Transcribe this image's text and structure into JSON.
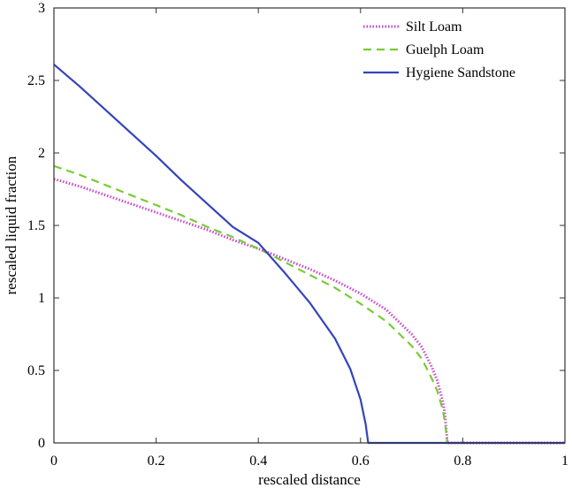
{
  "chart_data": {
    "type": "line",
    "title": "",
    "xlabel": "rescaled distance",
    "ylabel": "rescaled liquid fraction",
    "xlim": [
      0,
      1
    ],
    "ylim": [
      0,
      3
    ],
    "x_ticks": [
      "0",
      "0.2",
      "0.4",
      "0.6",
      "0.8",
      "1"
    ],
    "y_ticks": [
      "0",
      "0.5",
      "1",
      "1.5",
      "2",
      "2.5",
      "3"
    ],
    "grid": false,
    "legend_position": "top-right",
    "series": [
      {
        "name": "Silt Loam",
        "color": "#cc44cc",
        "style": "dotted",
        "x": [
          0,
          0.05,
          0.1,
          0.15,
          0.2,
          0.25,
          0.3,
          0.35,
          0.4,
          0.45,
          0.5,
          0.55,
          0.6,
          0.65,
          0.7,
          0.72,
          0.74,
          0.75,
          0.76,
          0.765,
          0.77,
          0.8,
          1.0
        ],
        "y": [
          1.82,
          1.77,
          1.71,
          1.65,
          1.59,
          1.53,
          1.47,
          1.4,
          1.34,
          1.27,
          1.2,
          1.12,
          1.03,
          0.92,
          0.75,
          0.66,
          0.52,
          0.43,
          0.3,
          0.2,
          0.0,
          0.0,
          0.0
        ]
      },
      {
        "name": "Guelph Loam",
        "color": "#77cc33",
        "style": "dashed",
        "x": [
          0,
          0.05,
          0.1,
          0.15,
          0.2,
          0.25,
          0.3,
          0.35,
          0.4,
          0.45,
          0.5,
          0.55,
          0.6,
          0.65,
          0.7,
          0.72,
          0.74,
          0.75,
          0.76,
          0.765,
          0.77
        ],
        "y": [
          1.91,
          1.85,
          1.78,
          1.71,
          1.64,
          1.57,
          1.49,
          1.42,
          1.34,
          1.25,
          1.16,
          1.07,
          0.96,
          0.84,
          0.67,
          0.58,
          0.44,
          0.36,
          0.24,
          0.15,
          0.0
        ]
      },
      {
        "name": "Hygiene Sandstone",
        "color": "#3344bb",
        "style": "solid",
        "x": [
          0,
          0.05,
          0.1,
          0.15,
          0.2,
          0.25,
          0.3,
          0.35,
          0.4,
          0.45,
          0.5,
          0.55,
          0.58,
          0.6,
          0.61,
          0.615,
          0.62,
          0.7,
          0.8,
          0.9,
          1.0
        ],
        "y": [
          2.61,
          2.46,
          2.3,
          2.14,
          1.98,
          1.81,
          1.65,
          1.49,
          1.38,
          1.18,
          0.97,
          0.72,
          0.51,
          0.3,
          0.13,
          0.0,
          0.0,
          0.0,
          0.0,
          0.0,
          0.0
        ]
      }
    ]
  }
}
